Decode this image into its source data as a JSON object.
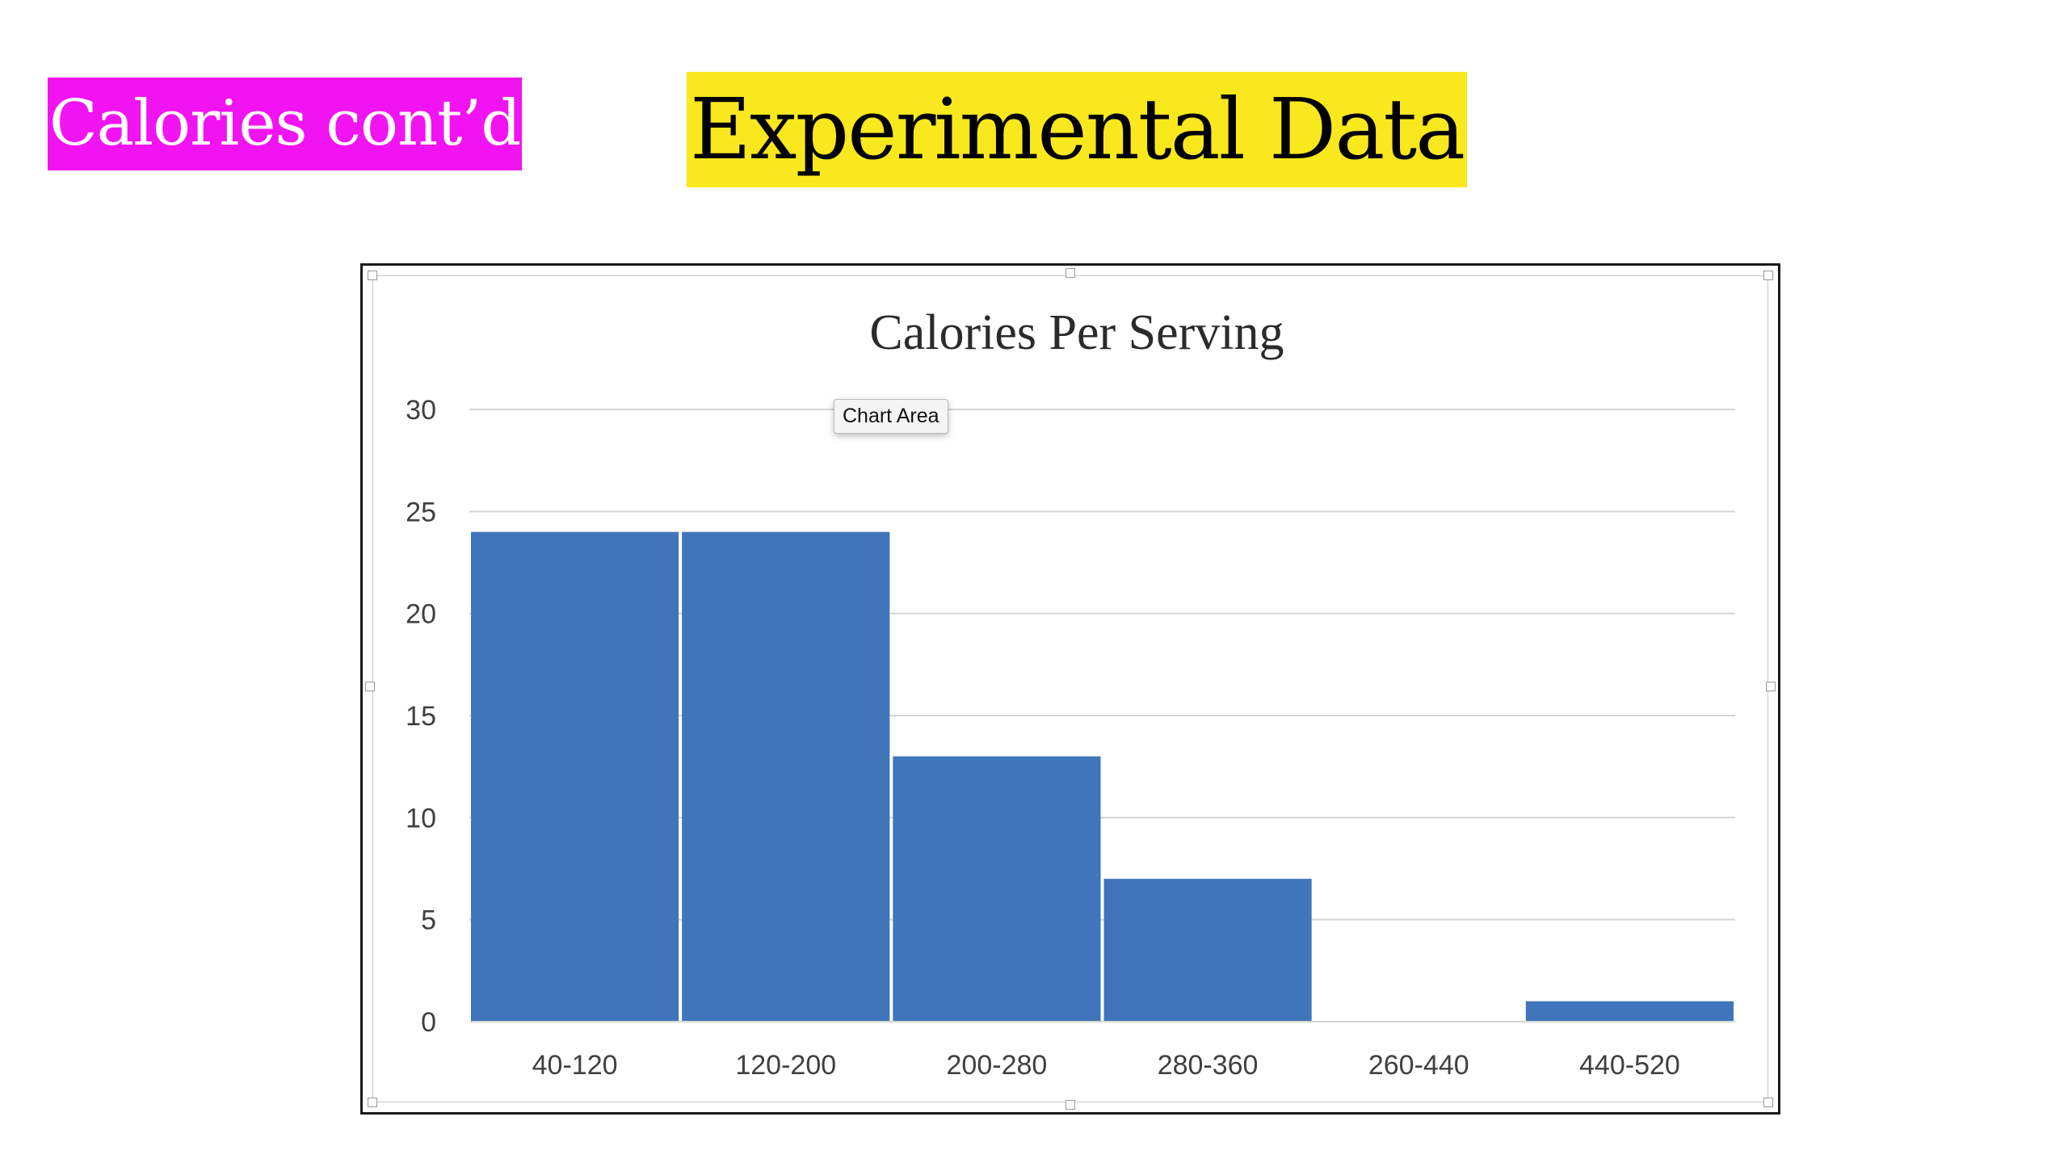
{
  "header": {
    "section_label": "Calories cont’d",
    "section_label_bg": "#f213f2",
    "title": "Experimental Data",
    "title_bg": "#f9e81d"
  },
  "tooltip": {
    "label": "Chart Area"
  },
  "chart_data": {
    "type": "bar",
    "title": "Calories Per Serving",
    "categories": [
      "40-120",
      "120-200",
      "200-280",
      "280-360",
      "260-440",
      "440-520"
    ],
    "values": [
      24,
      24,
      13,
      7,
      0,
      1
    ],
    "xlabel": "",
    "ylabel": "",
    "ylim": [
      0,
      30
    ],
    "yticks": [
      0,
      5,
      10,
      15,
      20,
      25,
      30
    ],
    "grid": true,
    "legend": "none",
    "bar_color": "#4074bb",
    "grid_color": "#d4d4d4"
  }
}
